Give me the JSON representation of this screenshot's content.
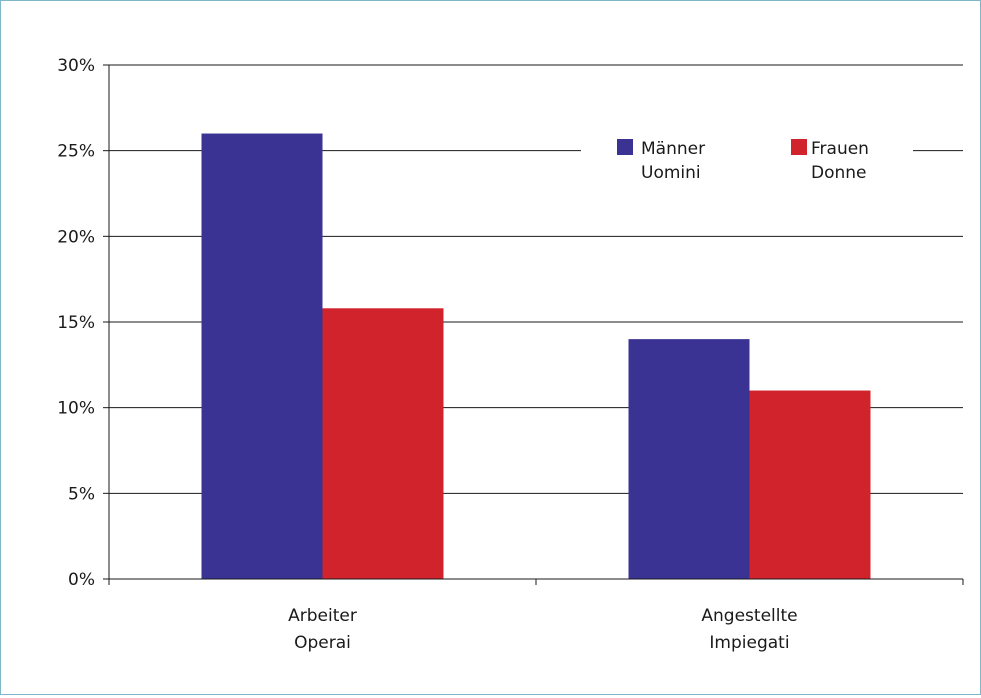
{
  "chart_data": {
    "type": "bar",
    "categories": [
      [
        "Arbeiter",
        "Operai"
      ],
      [
        "Angestellte",
        "Impiegati"
      ]
    ],
    "series": [
      {
        "name": [
          "Männer",
          "Uomini"
        ],
        "color": "#3b3394",
        "values": [
          26,
          14
        ]
      },
      {
        "name": [
          "Frauen",
          "Donne"
        ],
        "color": "#d1232c",
        "values": [
          15.8,
          11
        ]
      }
    ],
    "y_ticks": [
      "0%",
      "5%",
      "10%",
      "15%",
      "20%",
      "25%",
      "30%"
    ],
    "ylim": [
      0,
      30
    ],
    "y_unit": "%",
    "grid": true,
    "legend_position": "top-right",
    "title": "",
    "xlabel": "",
    "ylabel": ""
  }
}
